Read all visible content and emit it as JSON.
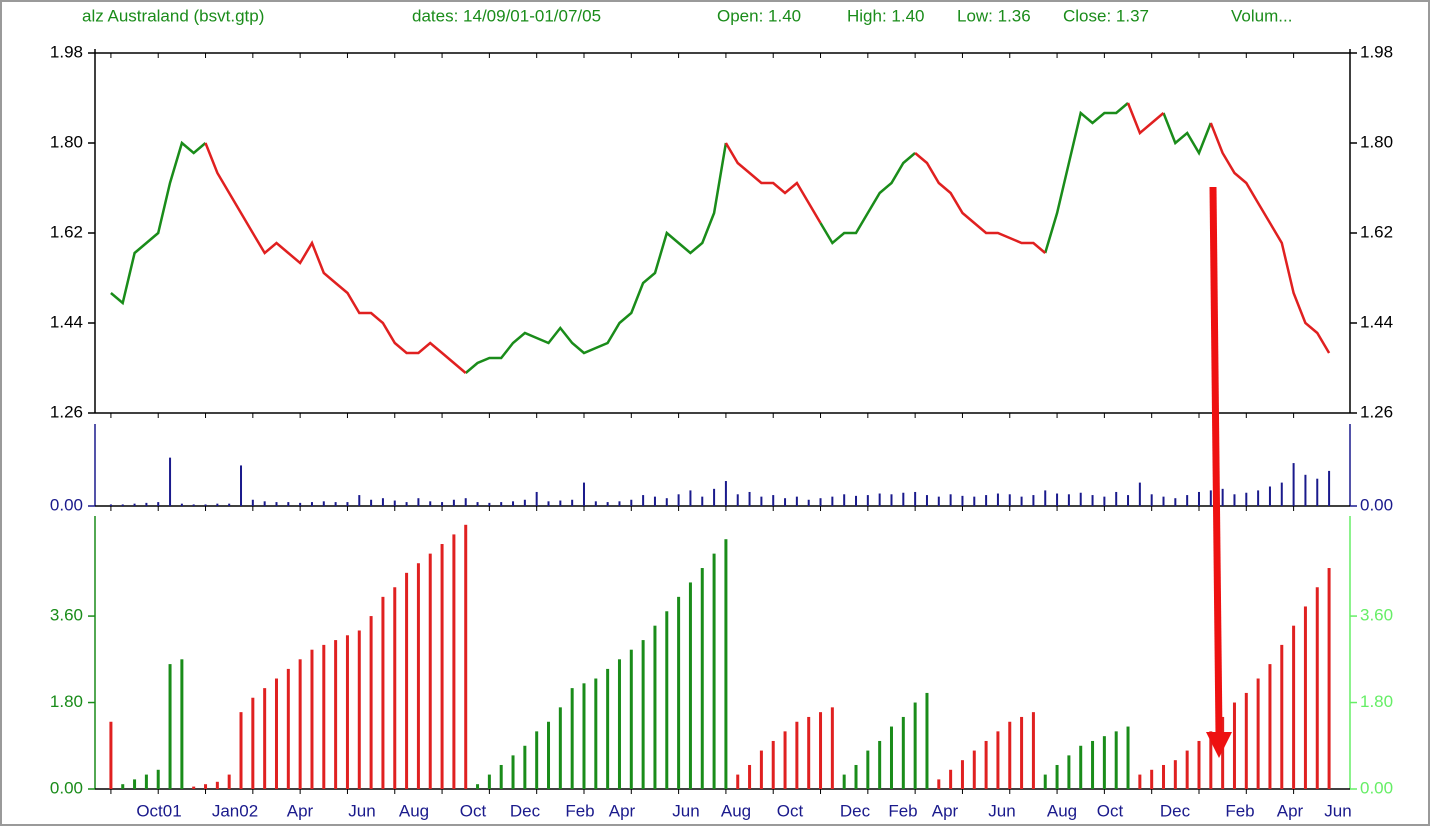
{
  "chart_data": {
    "type": "stock",
    "header": [
      "alz Australand (bsvt.gtp)",
      "dates: 14/09/01-01/07/05",
      "Open: 1.40",
      "High: 1.40",
      "Low: 1.36",
      "Close: 1.37",
      "Volum..."
    ],
    "x_labels": [
      "Oct01",
      "Jan02",
      "Apr",
      "Jun",
      "Aug",
      "Oct",
      "Dec",
      "Feb",
      "Apr",
      "Jun",
      "Aug",
      "Oct",
      "Dec",
      "Feb",
      "Apr",
      "Jun",
      "Aug",
      "Oct",
      "Dec",
      "Feb",
      "Apr",
      "Jun"
    ],
    "price": {
      "ylim": [
        1.26,
        1.98
      ],
      "yticks": [
        1.98,
        {
          "value": 1.8,
          "label": "1.80"
        },
        1.62,
        1.44,
        1.26
      ],
      "series": [
        {
          "color": "#1a8c1a",
          "values": [
            1.5,
            1.48,
            1.58,
            1.6,
            1.62,
            1.72,
            1.8,
            1.78,
            1.8,
            null,
            null,
            null,
            null,
            null,
            null,
            null,
            null,
            null,
            null,
            null,
            null,
            null,
            null,
            null,
            null,
            null,
            null,
            null,
            null,
            null,
            1.34,
            1.36,
            1.37,
            1.37,
            1.4,
            1.42,
            1.41,
            1.4,
            1.43,
            1.4,
            1.38,
            1.39,
            1.4,
            1.44,
            1.46,
            1.52,
            1.54,
            1.62,
            1.6,
            1.58,
            1.6,
            1.66,
            1.8,
            null,
            null,
            null,
            null,
            null,
            null,
            null,
            1.64,
            1.6,
            1.62,
            1.62,
            1.66,
            1.7,
            1.72,
            1.76,
            1.78,
            null,
            null,
            null,
            null,
            null,
            null,
            null,
            null,
            null,
            null,
            1.58,
            1.66,
            1.76,
            1.86,
            1.84,
            1.86,
            1.86,
            1.88,
            null,
            null,
            1.86,
            1.8,
            1.82,
            1.78,
            1.84,
            null,
            null,
            null,
            null,
            null,
            null,
            null,
            null,
            null,
            null
          ]
        },
        {
          "color": "#e02020",
          "values": [
            null,
            null,
            null,
            null,
            null,
            null,
            null,
            null,
            1.8,
            1.74,
            1.7,
            1.66,
            1.62,
            1.58,
            1.6,
            1.58,
            1.56,
            1.6,
            1.54,
            1.52,
            1.5,
            1.46,
            1.46,
            1.44,
            1.4,
            1.38,
            1.38,
            1.4,
            1.38,
            1.36,
            1.34,
            null,
            null,
            null,
            null,
            null,
            null,
            null,
            null,
            null,
            null,
            null,
            null,
            null,
            null,
            null,
            null,
            null,
            null,
            null,
            null,
            null,
            1.8,
            1.76,
            1.74,
            1.72,
            1.72,
            1.7,
            1.72,
            1.68,
            1.64,
            null,
            null,
            null,
            null,
            null,
            null,
            null,
            1.78,
            1.76,
            1.72,
            1.7,
            1.66,
            1.64,
            1.62,
            1.62,
            1.61,
            1.6,
            1.6,
            1.58,
            null,
            null,
            null,
            null,
            null,
            null,
            1.88,
            1.82,
            1.84,
            1.86,
            null,
            null,
            null,
            1.84,
            1.78,
            1.74,
            1.72,
            1.68,
            1.64,
            1.6,
            1.5,
            1.44,
            1.42,
            1.38
          ]
        }
      ]
    },
    "volume": {
      "ylim": [
        0,
        1
      ],
      "yticks": [
        {
          "value": 0,
          "label": "0.00"
        }
      ],
      "color": "#1a1a8c",
      "values": [
        0.02,
        0.02,
        0.03,
        0.04,
        0.05,
        0.62,
        0.03,
        0.02,
        0.02,
        0.03,
        0.03,
        0.52,
        0.08,
        0.06,
        0.05,
        0.05,
        0.04,
        0.05,
        0.06,
        0.05,
        0.05,
        0.14,
        0.08,
        0.1,
        0.07,
        0.05,
        0.1,
        0.06,
        0.05,
        0.08,
        0.1,
        0.05,
        0.04,
        0.05,
        0.06,
        0.08,
        0.18,
        0.06,
        0.07,
        0.08,
        0.3,
        0.06,
        0.05,
        0.06,
        0.08,
        0.14,
        0.12,
        0.1,
        0.15,
        0.2,
        0.12,
        0.22,
        0.32,
        0.15,
        0.18,
        0.12,
        0.14,
        0.1,
        0.12,
        0.08,
        0.1,
        0.12,
        0.15,
        0.13,
        0.14,
        0.16,
        0.15,
        0.17,
        0.18,
        0.14,
        0.12,
        0.15,
        0.13,
        0.12,
        0.14,
        0.16,
        0.15,
        0.12,
        0.14,
        0.2,
        0.16,
        0.15,
        0.17,
        0.14,
        0.12,
        0.18,
        0.14,
        0.3,
        0.15,
        0.12,
        0.1,
        0.14,
        0.18,
        0.2,
        0.22,
        0.15,
        0.17,
        0.2,
        0.25,
        0.3,
        0.55,
        0.4,
        0.35,
        0.45
      ]
    },
    "indicator": {
      "ylim": [
        0,
        5.6
      ],
      "yticks": [
        {
          "value": 0,
          "label": "0.00"
        },
        {
          "value": 1.8,
          "label": "1.80"
        },
        {
          "value": 3.6,
          "label": "3.60"
        }
      ],
      "series": [
        {
          "color": "#e02020",
          "values": [
            1.4,
            null,
            null,
            null,
            null,
            null,
            null,
            0.05,
            0.1,
            0.15,
            0.3,
            1.6,
            1.9,
            2.1,
            2.3,
            2.5,
            2.7,
            2.9,
            3.0,
            3.1,
            3.2,
            3.3,
            3.6,
            4.0,
            4.2,
            4.5,
            4.7,
            4.9,
            5.1,
            5.3,
            5.5,
            null,
            null,
            null,
            null,
            null,
            null,
            null,
            null,
            null,
            null,
            null,
            null,
            null,
            null,
            null,
            null,
            null,
            null,
            null,
            null,
            null,
            null,
            0.3,
            0.5,
            0.8,
            1.0,
            1.2,
            1.4,
            1.5,
            1.6,
            1.7,
            null,
            null,
            null,
            null,
            null,
            null,
            null,
            null,
            0.2,
            0.4,
            0.6,
            0.8,
            1.0,
            1.2,
            1.4,
            1.5,
            1.6,
            null,
            null,
            null,
            null,
            null,
            null,
            null,
            null,
            0.3,
            0.4,
            0.5,
            0.6,
            0.8,
            1.0,
            1.2,
            1.5,
            1.8,
            2.0,
            2.3,
            2.6,
            3.0,
            3.4,
            3.8,
            4.2,
            4.6
          ]
        },
        {
          "color": "#1a8c1a",
          "values": [
            null,
            0.1,
            0.2,
            0.3,
            0.4,
            2.6,
            2.7,
            null,
            null,
            null,
            null,
            null,
            null,
            null,
            null,
            null,
            null,
            null,
            null,
            null,
            null,
            null,
            null,
            null,
            null,
            null,
            null,
            null,
            null,
            null,
            null,
            0.1,
            0.3,
            0.5,
            0.7,
            0.9,
            1.2,
            1.4,
            1.7,
            2.1,
            2.2,
            2.3,
            2.5,
            2.7,
            2.9,
            3.1,
            3.4,
            3.7,
            4.0,
            4.3,
            4.6,
            4.9,
            5.2,
            null,
            null,
            null,
            null,
            null,
            null,
            null,
            null,
            null,
            0.3,
            0.5,
            0.8,
            1.0,
            1.3,
            1.5,
            1.8,
            2.0,
            null,
            null,
            null,
            null,
            null,
            null,
            null,
            null,
            null,
            0.3,
            0.5,
            0.7,
            0.9,
            1.0,
            1.1,
            1.2,
            1.3,
            null,
            null,
            null,
            null,
            null,
            null,
            null,
            null,
            null,
            null,
            null,
            null,
            null,
            null,
            null,
            null,
            null
          ]
        }
      ]
    }
  }
}
